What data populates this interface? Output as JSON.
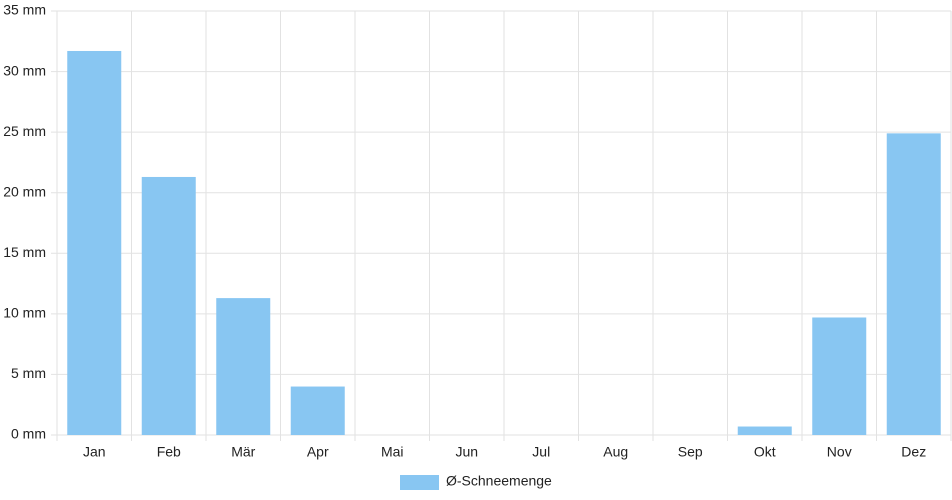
{
  "chart_data": {
    "type": "bar",
    "categories": [
      "Jan",
      "Feb",
      "Mär",
      "Apr",
      "Mai",
      "Jun",
      "Jul",
      "Aug",
      "Sep",
      "Okt",
      "Nov",
      "Dez"
    ],
    "series": [
      {
        "name": "Ø-Schneemenge",
        "color": "#88c6f2",
        "values": [
          31.7,
          21.3,
          11.3,
          4.0,
          0,
          0,
          0,
          0,
          0,
          0.7,
          9.7,
          24.9
        ]
      }
    ],
    "ylim": [
      0,
      35
    ],
    "yticks": [
      {
        "value": 0,
        "label": "0 mm"
      },
      {
        "value": 5,
        "label": "5 mm"
      },
      {
        "value": 10,
        "label": "10 mm"
      },
      {
        "value": 15,
        "label": "15 mm"
      },
      {
        "value": 20,
        "label": "20 mm"
      },
      {
        "value": 25,
        "label": "25 mm"
      },
      {
        "value": 30,
        "label": "30 mm"
      },
      {
        "value": 35,
        "label": "35 mm"
      }
    ],
    "grid": true,
    "legend": "bottom"
  }
}
